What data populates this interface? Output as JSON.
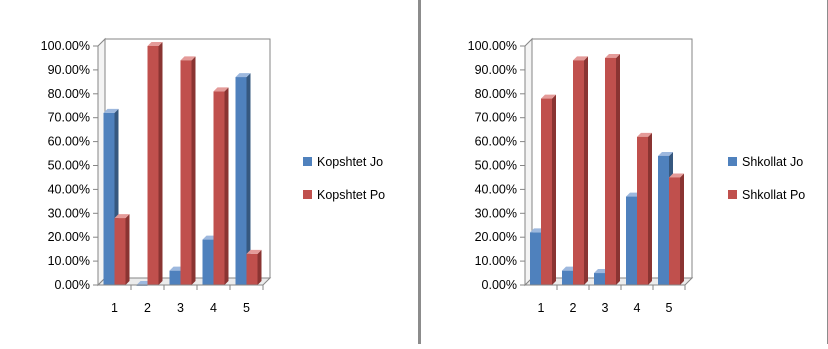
{
  "colors": {
    "blue_face": "#4f81bd",
    "blue_top": "#9db8de",
    "blue_side": "#36587f",
    "red_face": "#c0504d",
    "red_top": "#e49b99",
    "red_side": "#8a3432",
    "wall": "#ffffff",
    "axis": "#868686"
  },
  "chart_data": [
    {
      "type": "bar",
      "categories": [
        "1",
        "2",
        "3",
        "4",
        "5"
      ],
      "ylim": [
        0,
        1
      ],
      "yticks": [
        "0.00%",
        "10.00%",
        "20.00%",
        "30.00%",
        "40.00%",
        "50.00%",
        "60.00%",
        "70.00%",
        "80.00%",
        "90.00%",
        "100.00%"
      ],
      "grid": false,
      "legend_position": "right",
      "series": [
        {
          "name": "Kopshtet Jo",
          "values": [
            0.72,
            0.0,
            0.06,
            0.19,
            0.87
          ]
        },
        {
          "name": "Kopshtet Po",
          "values": [
            0.28,
            1.0,
            0.94,
            0.81,
            0.13
          ]
        }
      ]
    },
    {
      "type": "bar",
      "categories": [
        "1",
        "2",
        "3",
        "4",
        "5"
      ],
      "ylim": [
        0,
        1
      ],
      "yticks": [
        "0.00%",
        "10.00%",
        "20.00%",
        "30.00%",
        "40.00%",
        "50.00%",
        "60.00%",
        "70.00%",
        "80.00%",
        "90.00%",
        "100.00%"
      ],
      "grid": false,
      "legend_position": "right",
      "series": [
        {
          "name": "Shkollat Jo",
          "values": [
            0.22,
            0.06,
            0.05,
            0.37,
            0.54
          ]
        },
        {
          "name": "Shkollat Po",
          "values": [
            0.78,
            0.94,
            0.95,
            0.62,
            0.45
          ]
        }
      ]
    }
  ]
}
